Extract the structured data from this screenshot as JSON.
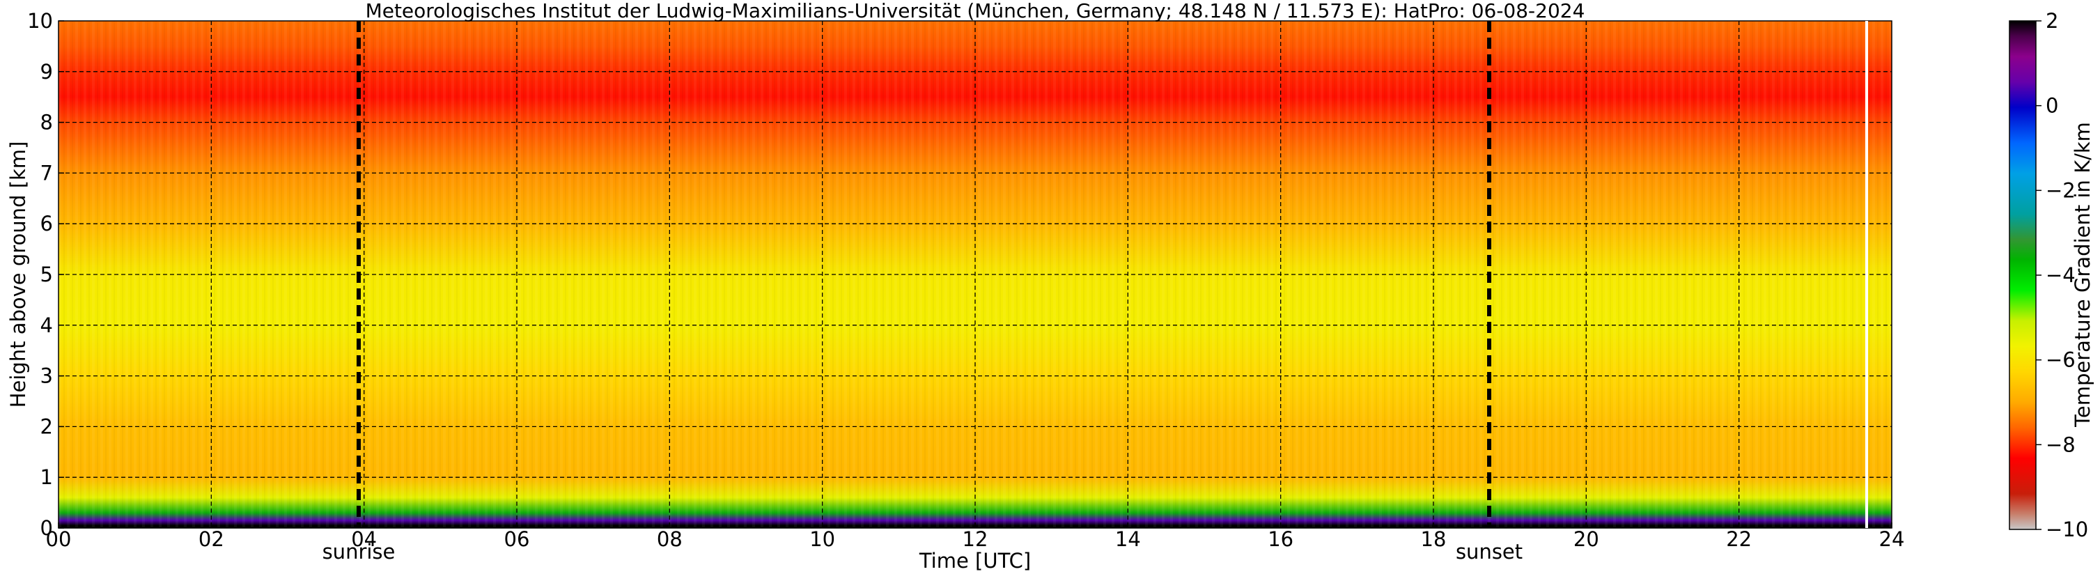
{
  "chart_data": {
    "type": "heatmap",
    "title": "Meteorologisches Institut der Ludwig-Maximilians-Universität (München, Germany; 48.148 N / 11.573 E):    HatPro: 06-08-2024",
    "xlabel": "Time [UTC]",
    "ylabel": "Height above ground [km]",
    "xlim": [
      0,
      24
    ],
    "ylim": [
      0,
      10
    ],
    "x_ticks": [
      0,
      2,
      4,
      6,
      8,
      10,
      12,
      14,
      16,
      18,
      20,
      22,
      24
    ],
    "x_tick_labels": [
      "00",
      "02",
      "04",
      "06",
      "08",
      "10",
      "12",
      "14",
      "16",
      "18",
      "20",
      "22",
      "24"
    ],
    "y_ticks": [
      0,
      1,
      2,
      3,
      4,
      5,
      6,
      7,
      8,
      9,
      10
    ],
    "y_tick_labels": [
      "0",
      "1",
      "2",
      "3",
      "4",
      "5",
      "6",
      "7",
      "8",
      "9",
      "10"
    ],
    "grid": true,
    "colorbar": {
      "label": "Temperature Gradient in K/km",
      "range": [
        -10,
        2
      ],
      "ticks": [
        2,
        0,
        -2,
        -4,
        -6,
        -8,
        -10
      ],
      "tick_labels": [
        "2",
        "0",
        "−2",
        "−4",
        "−6",
        "−8",
        "−10"
      ]
    },
    "markers": [
      {
        "label": "sunrise",
        "time": 3.93
      },
      {
        "label": "sunset",
        "time": 18.73
      }
    ],
    "height_profile": [
      {
        "height": 0.05,
        "value": 2.0
      },
      {
        "height": 0.15,
        "value": 0.5
      },
      {
        "height": 0.3,
        "value": -3.5
      },
      {
        "height": 0.6,
        "value": -5.5
      },
      {
        "height": 1.0,
        "value": -6.8
      },
      {
        "height": 2.0,
        "value": -6.7
      },
      {
        "height": 3.0,
        "value": -6.3
      },
      {
        "height": 4.0,
        "value": -5.8
      },
      {
        "height": 5.0,
        "value": -5.9
      },
      {
        "height": 6.0,
        "value": -6.8
      },
      {
        "height": 7.0,
        "value": -7.2
      },
      {
        "height": 8.0,
        "value": -7.8
      },
      {
        "height": 8.5,
        "value": -8.2
      },
      {
        "height": 9.0,
        "value": -8.0
      },
      {
        "height": 9.5,
        "value": -7.7
      },
      {
        "height": 10.0,
        "value": -7.5
      }
    ]
  }
}
